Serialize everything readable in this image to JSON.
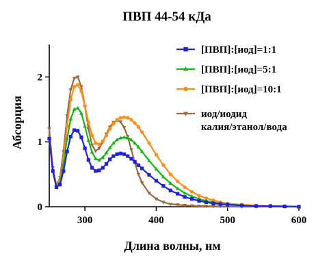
{
  "chart_data": {
    "type": "line",
    "title": "ПВП 44-54 кДа",
    "xlabel": "Длина волны, нм",
    "ylabel": "Абсорция",
    "xlim": [
      250,
      600
    ],
    "ylim": [
      0,
      2.5
    ],
    "xticks": [
      300,
      400,
      500,
      600
    ],
    "yticks": [
      0,
      1,
      2
    ],
    "grid": false,
    "legend_position": "top-right",
    "x": [
      250,
      255,
      260,
      265,
      270,
      275,
      280,
      285,
      290,
      295,
      300,
      305,
      310,
      315,
      320,
      325,
      330,
      335,
      340,
      345,
      350,
      355,
      360,
      365,
      370,
      375,
      380,
      390,
      400,
      410,
      420,
      430,
      440,
      450,
      460,
      470,
      480,
      490,
      500,
      520,
      540,
      560,
      580,
      600
    ],
    "series": [
      {
        "name": "[ПВП]:[иод]=1:1",
        "color": "#1f1fe6",
        "marker": "square",
        "values": [
          1.05,
          0.55,
          0.3,
          0.34,
          0.55,
          0.85,
          1.08,
          1.18,
          1.17,
          1.07,
          0.9,
          0.72,
          0.6,
          0.55,
          0.56,
          0.6,
          0.66,
          0.73,
          0.78,
          0.81,
          0.82,
          0.81,
          0.78,
          0.74,
          0.69,
          0.64,
          0.59,
          0.49,
          0.4,
          0.32,
          0.25,
          0.2,
          0.15,
          0.12,
          0.09,
          0.07,
          0.05,
          0.04,
          0.03,
          0.02,
          0.01,
          0.01,
          0.005,
          0.0
        ]
      },
      {
        "name": "[ПВП]:[иод]=5:1",
        "color": "#14b814",
        "marker": "triangle",
        "values": [
          1.05,
          0.55,
          0.31,
          0.37,
          0.65,
          1.05,
          1.35,
          1.5,
          1.52,
          1.44,
          1.24,
          1.02,
          0.84,
          0.74,
          0.72,
          0.76,
          0.83,
          0.91,
          0.98,
          1.03,
          1.06,
          1.07,
          1.06,
          1.03,
          0.98,
          0.92,
          0.85,
          0.71,
          0.58,
          0.46,
          0.36,
          0.28,
          0.21,
          0.16,
          0.12,
          0.09,
          0.07,
          0.05,
          0.04,
          0.02,
          0.01,
          0.01,
          0.005,
          0.0
        ]
      },
      {
        "name": "[ПВП]:[иод]=10:1",
        "color": "#ff8c14",
        "marker": "circle",
        "values": [
          1.05,
          0.55,
          0.32,
          0.4,
          0.75,
          1.25,
          1.65,
          1.85,
          1.88,
          1.78,
          1.55,
          1.3,
          1.1,
          0.98,
          0.96,
          1.01,
          1.1,
          1.2,
          1.28,
          1.34,
          1.37,
          1.38,
          1.37,
          1.34,
          1.29,
          1.23,
          1.15,
          0.98,
          0.8,
          0.64,
          0.5,
          0.39,
          0.3,
          0.23,
          0.17,
          0.13,
          0.1,
          0.07,
          0.05,
          0.03,
          0.02,
          0.01,
          0.005,
          0.0
        ]
      },
      {
        "name": "иод/иодид калия/этанол/вода",
        "color": "#9c6a3c",
        "marker": "triangle-down",
        "values": [
          1.2,
          0.6,
          0.33,
          0.45,
          0.85,
          1.4,
          1.8,
          1.98,
          2.0,
          1.85,
          1.55,
          1.2,
          0.95,
          0.86,
          0.9,
          1.0,
          1.12,
          1.23,
          1.3,
          1.33,
          1.31,
          1.22,
          1.08,
          0.88,
          0.68,
          0.5,
          0.37,
          0.21,
          0.12,
          0.07,
          0.04,
          0.03,
          0.02,
          0.015,
          0.01,
          0.01,
          0.005,
          0.005,
          0.0,
          0.0,
          0.0,
          0.0,
          0.0,
          0.0
        ]
      }
    ],
    "legend_lines": [
      [
        "[ПВП]:[иод]=1:1"
      ],
      [
        "[ПВП]:[иод]=5:1"
      ],
      [
        "[ПВП]:[иод]=10:1"
      ],
      [
        "иод/иодид",
        "калия/этанол/вода"
      ]
    ]
  }
}
